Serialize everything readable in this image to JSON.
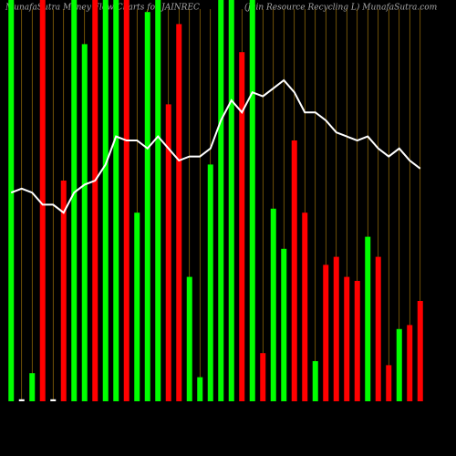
{
  "chart_data": {
    "type": "bar",
    "title": "MunafaSutra  Money Flow  Charts for JAINREC",
    "subtitle": "(Jain  Resource   Recycling L) MunafaSutra.com",
    "values": [
      100,
      0.5,
      7,
      100,
      0.5,
      55,
      100,
      89,
      100,
      100,
      100,
      100,
      47,
      97,
      100,
      74,
      94,
      31,
      6,
      59,
      100,
      100,
      87,
      100,
      12,
      48,
      38,
      65,
      47,
      10,
      34,
      36,
      31,
      30,
      41,
      36,
      9,
      18,
      19,
      25
    ],
    "colors": [
      "#00ff00",
      "#ffffff",
      "#00ff00",
      "#ff0000",
      "#ffffff",
      "#ff0000",
      "#00ff00",
      "#00ff00",
      "#ff0000",
      "#00ff00",
      "#00ff00",
      "#ff0000",
      "#00ff00",
      "#00ff00",
      "#00ff00",
      "#ff0000",
      "#ff0000",
      "#00ff00",
      "#00ff00",
      "#00ff00",
      "#00ff00",
      "#00ff00",
      "#ff0000",
      "#00ff00",
      "#ff0000",
      "#00ff00",
      "#00ff00",
      "#ff0000",
      "#ff0000",
      "#00ff00",
      "#ff0000",
      "#ff0000",
      "#ff0000",
      "#ff0000",
      "#00ff00",
      "#ff0000",
      "#ff0000",
      "#00ff00",
      "#ff0000",
      "#ff0000"
    ],
    "line": {
      "color": "#ffffff",
      "values": [
        52,
        53,
        52,
        49,
        49,
        47,
        52,
        54,
        55,
        59,
        66,
        65,
        65,
        63,
        66,
        63,
        60,
        61,
        61,
        63,
        70,
        75,
        72,
        77,
        76,
        78,
        80,
        77,
        72,
        72,
        70,
        67,
        66,
        65,
        66,
        63,
        61,
        63,
        60,
        58
      ]
    },
    "ylim": [
      0,
      100
    ],
    "gridline_color": "#b8860b"
  }
}
